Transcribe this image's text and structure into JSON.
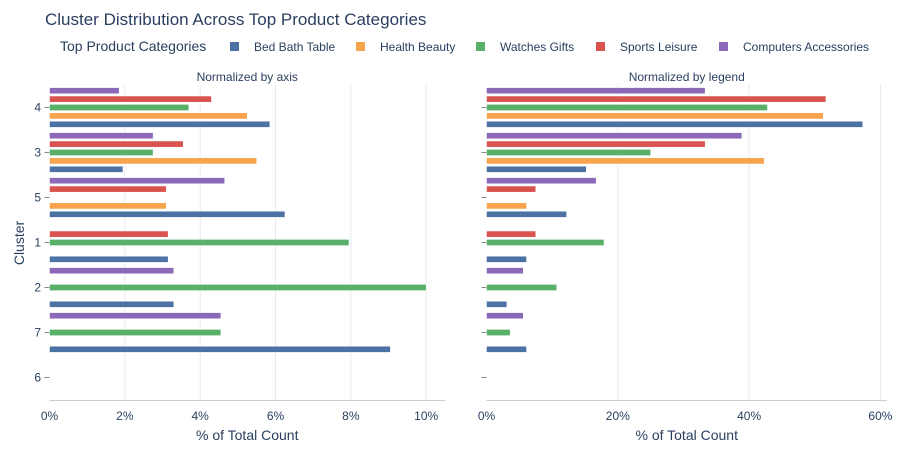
{
  "chart_data": {
    "type": "bar",
    "orientation": "horizontal",
    "title": "Cluster Distribution Across Top Product Categories",
    "legend_title": "Top Product Categories",
    "legend_position": "top",
    "ylabel": "Cluster",
    "clusters": [
      "4",
      "3",
      "5",
      "1",
      "2",
      "7",
      "6"
    ],
    "series": [
      {
        "name": "Bed Bath Table",
        "color": "#4c72a4"
      },
      {
        "name": "Health Beauty",
        "color": "#f7a44c"
      },
      {
        "name": "Watches Gifts",
        "color": "#58b069"
      },
      {
        "name": "Sports Leisure",
        "color": "#d9534f"
      },
      {
        "name": "Computers Accessories",
        "color": "#8c68b8"
      }
    ],
    "panels": [
      {
        "title": "Normalized by axis",
        "xlabel": "% of Total Count",
        "xlim": [
          0,
          10.5
        ],
        "ticks": [
          0,
          2,
          4,
          6,
          8,
          10
        ],
        "tick_labels": [
          "0%",
          "2%",
          "4%",
          "6%",
          "8%",
          "10%"
        ],
        "values": {
          "4": [
            5.85,
            5.25,
            3.7,
            4.3,
            1.85
          ],
          "3": [
            1.95,
            5.5,
            2.75,
            3.55,
            2.75
          ],
          "5": [
            6.25,
            3.1,
            0,
            3.1,
            4.65
          ],
          "1": [
            3.15,
            0,
            7.95,
            3.15,
            0
          ],
          "2": [
            3.3,
            0,
            10.0,
            0,
            3.3
          ],
          "7": [
            9.05,
            0,
            4.55,
            0,
            4.55
          ],
          "6": [
            0,
            0,
            0,
            0,
            0
          ]
        }
      },
      {
        "title": "Normalized by legend",
        "xlabel": "% of Total Count",
        "xlim": [
          0,
          61
        ],
        "ticks": [
          0,
          20,
          40,
          60
        ],
        "tick_labels": [
          "0%",
          "20%",
          "40%",
          "60%"
        ],
        "values": {
          "4": [
            57.3,
            51.3,
            42.8,
            51.7,
            33.3
          ],
          "3": [
            15.2,
            42.3,
            25.0,
            33.3,
            38.9
          ],
          "5": [
            12.2,
            6.1,
            0,
            7.5,
            16.7
          ],
          "1": [
            6.1,
            0,
            17.9,
            7.5,
            0
          ],
          "2": [
            3.1,
            0,
            10.7,
            0,
            5.6
          ],
          "7": [
            6.1,
            0,
            3.6,
            0,
            5.6
          ],
          "6": [
            0,
            0,
            0,
            0,
            0
          ]
        }
      }
    ]
  }
}
